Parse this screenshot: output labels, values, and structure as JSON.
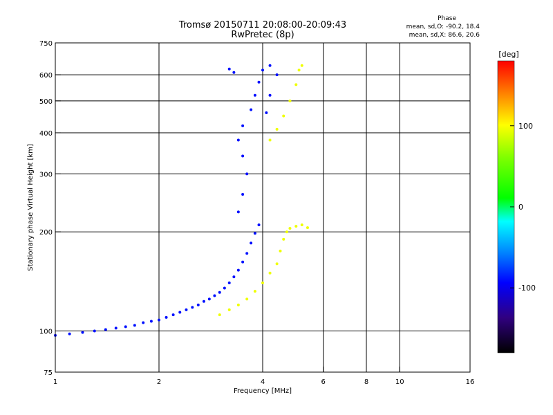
{
  "chart_data": {
    "type": "scatter",
    "title": "Tromsø 20150711 20:08:00-20:09:43",
    "subtitle": "RwPretec (8p)",
    "phase_box": {
      "title": "Phase",
      "line1": "mean, sd,O: -90.2, 18.4",
      "line2": "mean, sd,X:  86.6, 20.6"
    },
    "xlabel": "Frequency [MHz]",
    "ylabel": "Stationary phase Virtual Height [km]",
    "xscale": "log",
    "yscale": "log",
    "xlim": [
      1,
      16
    ],
    "ylim": [
      75,
      750
    ],
    "x_ticks": [
      1,
      2,
      4,
      6,
      8,
      10,
      16
    ],
    "x_tick_labels": [
      "1",
      "2",
      "4",
      "6",
      "8",
      "10",
      "16"
    ],
    "y_ticks": [
      75,
      100,
      200,
      300,
      400,
      500,
      600,
      750
    ],
    "y_tick_labels": [
      "75",
      "100",
      "200",
      "300",
      "400",
      "500",
      "600",
      "750"
    ],
    "grid": true,
    "colorbar": {
      "label": "[deg]",
      "range": [
        -180,
        180
      ],
      "ticks": [
        100,
        0,
        -100
      ],
      "tick_labels": [
        "100",
        "0",
        "-100"
      ],
      "colors": [
        "#ff0000",
        "#ff8000",
        "#ffff00",
        "#80ff00",
        "#00ff00",
        "#00ffff",
        "#0080ff",
        "#0000ff",
        "#300080",
        "#000000"
      ]
    },
    "series": [
      {
        "color_phase": -95,
        "points": [
          [
            1.0,
            97
          ],
          [
            1.1,
            98
          ],
          [
            1.2,
            99
          ],
          [
            1.3,
            100
          ],
          [
            1.4,
            101
          ],
          [
            1.5,
            102
          ],
          [
            1.6,
            103
          ],
          [
            1.7,
            104
          ],
          [
            1.8,
            106
          ],
          [
            1.9,
            107
          ],
          [
            2.0,
            108
          ],
          [
            2.1,
            110
          ],
          [
            2.2,
            112
          ],
          [
            2.3,
            114
          ],
          [
            2.4,
            116
          ],
          [
            2.5,
            118
          ],
          [
            2.6,
            120
          ],
          [
            2.7,
            123
          ],
          [
            2.8,
            125
          ],
          [
            2.9,
            128
          ],
          [
            3.0,
            131
          ],
          [
            3.1,
            135
          ],
          [
            3.2,
            140
          ],
          [
            3.3,
            146
          ],
          [
            3.4,
            153
          ],
          [
            3.5,
            162
          ],
          [
            3.6,
            172
          ],
          [
            3.7,
            185
          ],
          [
            3.8,
            198
          ],
          [
            3.9,
            210
          ],
          [
            3.4,
            230
          ],
          [
            3.5,
            260
          ],
          [
            3.6,
            300
          ],
          [
            3.5,
            340
          ],
          [
            3.4,
            380
          ],
          [
            3.5,
            420
          ],
          [
            3.7,
            470
          ],
          [
            3.8,
            520
          ],
          [
            3.9,
            570
          ],
          [
            4.0,
            620
          ],
          [
            4.2,
            640
          ],
          [
            4.4,
            600
          ],
          [
            4.2,
            520
          ],
          [
            4.1,
            460
          ],
          [
            3.2,
            625
          ],
          [
            3.3,
            610
          ]
        ]
      },
      {
        "color_phase": 95,
        "points": [
          [
            3.0,
            112
          ],
          [
            3.2,
            116
          ],
          [
            3.4,
            120
          ],
          [
            3.6,
            125
          ],
          [
            3.8,
            132
          ],
          [
            4.0,
            140
          ],
          [
            4.2,
            150
          ],
          [
            4.4,
            160
          ],
          [
            4.5,
            175
          ],
          [
            4.6,
            190
          ],
          [
            4.7,
            200
          ],
          [
            4.8,
            205
          ],
          [
            5.0,
            208
          ],
          [
            5.2,
            210
          ],
          [
            5.4,
            206
          ],
          [
            4.2,
            380
          ],
          [
            4.4,
            410
          ],
          [
            4.6,
            450
          ],
          [
            4.8,
            500
          ],
          [
            5.0,
            560
          ],
          [
            5.1,
            620
          ],
          [
            5.2,
            640
          ]
        ]
      }
    ]
  }
}
